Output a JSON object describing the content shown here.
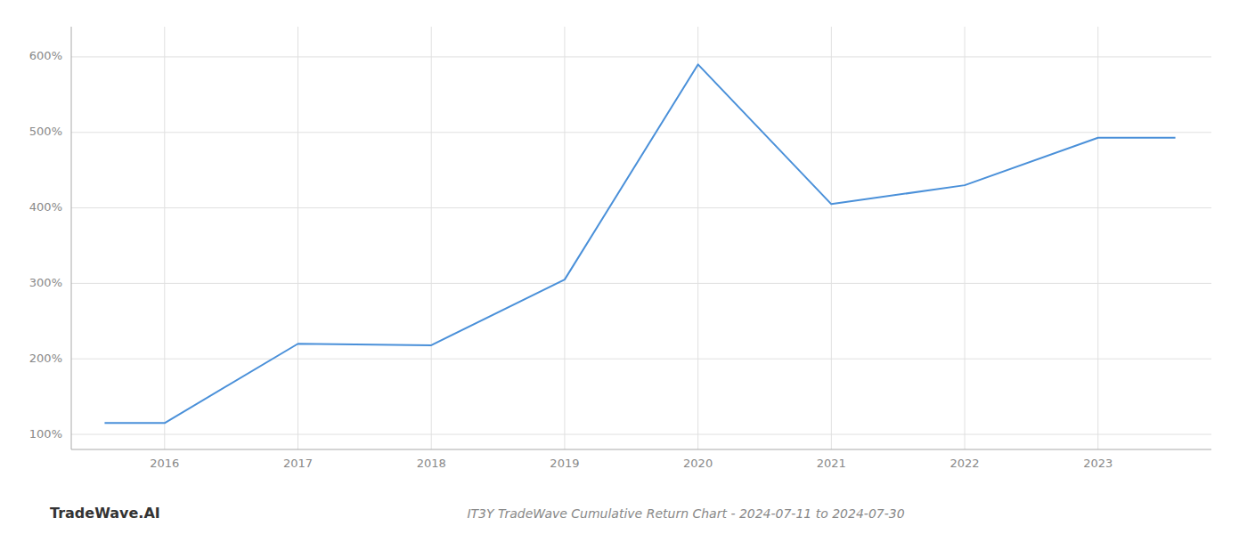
{
  "chart_data": {
    "type": "line",
    "title": "IT3Y TradeWave Cumulative Return Chart - 2024-07-11 to 2024-07-30",
    "annotations": [
      "TradeWave.AI"
    ],
    "x": [
      2015.55,
      2016.0,
      2017.0,
      2018.0,
      2019.0,
      2020.0,
      2021.0,
      2022.0,
      2023.0,
      2023.58
    ],
    "values": [
      115,
      115,
      220,
      218,
      305,
      590,
      405,
      430,
      493,
      493
    ],
    "color": "#4a90d9",
    "xlim": [
      2015.3,
      2023.85
    ],
    "ylim": [
      80,
      640
    ],
    "xticks": [
      2016,
      2017,
      2018,
      2019,
      2020,
      2021,
      2022,
      2023
    ],
    "yticks": [
      {
        "value": 100,
        "label": "100%"
      },
      {
        "value": 200,
        "label": "200%"
      },
      {
        "value": 300,
        "label": "300%"
      },
      {
        "value": 400,
        "label": "400%"
      },
      {
        "value": 500,
        "label": "500%"
      },
      {
        "value": 600,
        "label": "600%"
      }
    ],
    "grid": true
  }
}
